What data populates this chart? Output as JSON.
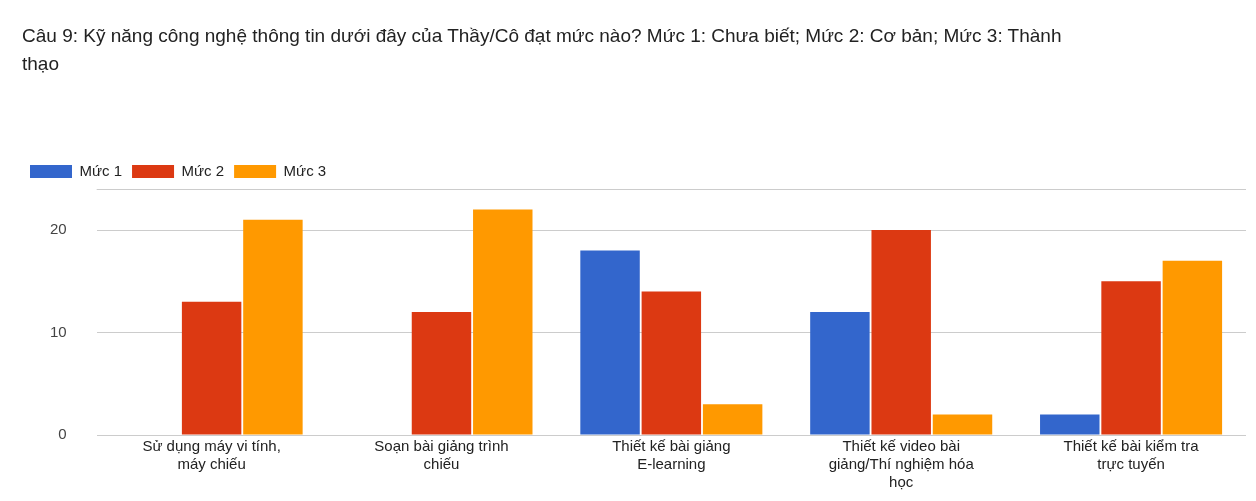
{
  "chart_data": {
    "type": "bar",
    "title": "Câu 9: Kỹ năng công nghệ thông tin dưới đây của Thầy/Cô đạt mức nào? Mức 1: Chưa biết; Mức 2: Cơ bản; Mức 3: Thành thạo",
    "categories": [
      "Sử dụng máy vi tính, máy chiếu",
      "Soạn bài giảng trình chiếu",
      "Thiết kế bài giảng E-learning",
      "Thiết kế video bài giảng/Thí nghiệm hóa học",
      "Thiết kế bài kiểm tra trực tuyến"
    ],
    "series": [
      {
        "name": "Mức 1",
        "color": "#3366cc",
        "values": [
          0,
          0,
          18,
          12,
          2
        ]
      },
      {
        "name": "Mức 2",
        "color": "#dc3912",
        "values": [
          13,
          12,
          14,
          20,
          15
        ]
      },
      {
        "name": "Mức 3",
        "color": "#ff9900",
        "values": [
          21,
          22,
          3,
          2,
          17
        ]
      }
    ],
    "ylim": [
      0,
      24
    ],
    "yticks": [
      0,
      10,
      20
    ],
    "grid": "y",
    "legend": "top left"
  }
}
